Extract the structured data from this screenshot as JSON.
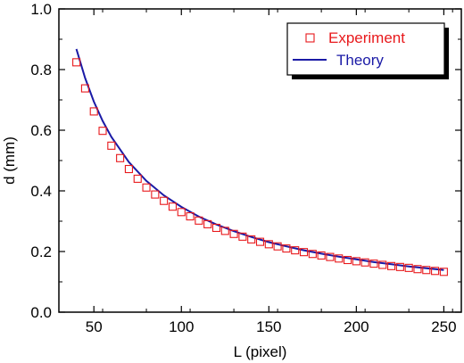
{
  "chart_data": {
    "type": "scatter",
    "xlabel": "L (pixel)",
    "ylabel": "d (mm)",
    "xlim": [
      30,
      260
    ],
    "ylim": [
      0.0,
      1.0
    ],
    "x_ticks": [
      50,
      100,
      150,
      200,
      250
    ],
    "y_ticks": [
      0.0,
      0.2,
      0.4,
      0.6,
      0.8,
      1.0
    ],
    "x_tick_labels": [
      "50",
      "100",
      "150",
      "200",
      "250"
    ],
    "y_tick_labels": [
      "0.0",
      "0.2",
      "0.4",
      "0.6",
      "0.8",
      "1.0"
    ],
    "grid": false,
    "legend_position": "top-right",
    "series": [
      {
        "name": "Experiment",
        "kind": "markers",
        "marker": "open-square",
        "color": "#e8191c",
        "x": [
          40,
          45,
          50,
          55,
          60,
          65,
          70,
          75,
          80,
          85,
          90,
          95,
          100,
          105,
          110,
          115,
          120,
          125,
          130,
          135,
          140,
          145,
          150,
          155,
          160,
          165,
          170,
          175,
          180,
          185,
          190,
          195,
          200,
          205,
          210,
          215,
          220,
          225,
          230,
          235,
          240,
          245,
          250
        ],
        "y": [
          0.824,
          0.738,
          0.662,
          0.598,
          0.549,
          0.508,
          0.472,
          0.44,
          0.411,
          0.388,
          0.367,
          0.348,
          0.33,
          0.316,
          0.302,
          0.29,
          0.278,
          0.268,
          0.258,
          0.249,
          0.24,
          0.232,
          0.224,
          0.217,
          0.21,
          0.204,
          0.198,
          0.192,
          0.187,
          0.182,
          0.177,
          0.172,
          0.168,
          0.164,
          0.16,
          0.156,
          0.152,
          0.149,
          0.146,
          0.142,
          0.139,
          0.136,
          0.133
        ]
      },
      {
        "name": "Theory",
        "kind": "line",
        "color": "#1a1aa6",
        "x": [
          40,
          45,
          50,
          55,
          60,
          70,
          80,
          90,
          100,
          110,
          120,
          130,
          140,
          150,
          160,
          170,
          180,
          190,
          200,
          210,
          220,
          230,
          240,
          250
        ],
        "y": [
          0.868,
          0.772,
          0.694,
          0.631,
          0.578,
          0.495,
          0.433,
          0.385,
          0.347,
          0.315,
          0.289,
          0.267,
          0.248,
          0.231,
          0.217,
          0.204,
          0.193,
          0.183,
          0.174,
          0.165,
          0.158,
          0.151,
          0.145,
          0.139
        ]
      }
    ]
  }
}
